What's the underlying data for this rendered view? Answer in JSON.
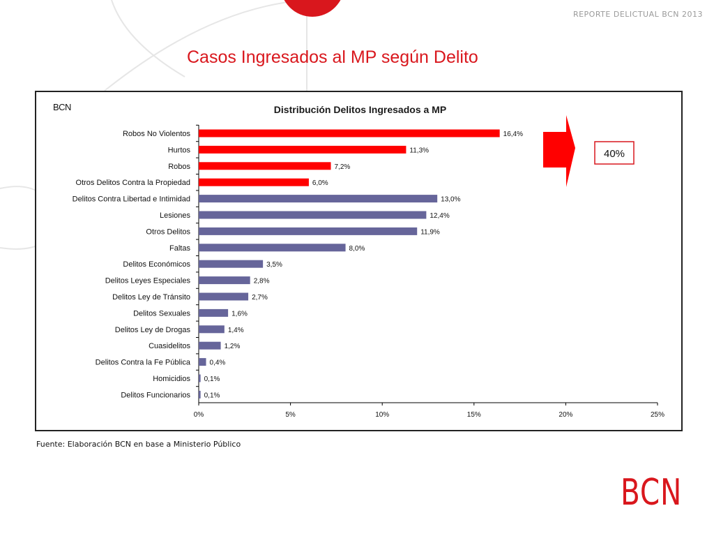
{
  "header": {
    "report_label": "REPORTE DELICTUAL BCN 2013"
  },
  "slide": {
    "title": "Casos Ingresados al MP según Delito"
  },
  "chart_box": {
    "logo_text": "BCN"
  },
  "annotation": {
    "percent_label": "40%"
  },
  "footer": {
    "source": "Fuente: Elaboración BCN en base a Ministerio Público",
    "brand": "BCN"
  },
  "colors": {
    "accent_red": "#d9171d",
    "bar_red": "#ff0000",
    "bar_purple": "#66659a"
  },
  "chart_data": {
    "type": "bar",
    "orientation": "horizontal",
    "title": "Distribución Delitos Ingresados a MP",
    "xlabel": "",
    "ylabel": "",
    "xlim": [
      0,
      25
    ],
    "x_ticks": [
      "0%",
      "5%",
      "10%",
      "15%",
      "20%",
      "25%"
    ],
    "grid": false,
    "categories": [
      "Robos No Violentos",
      "Hurtos",
      "Robos",
      "Otros Delitos Contra la Propiedad",
      "Delitos Contra Libertad e Intimidad",
      "Lesiones",
      "Otros Delitos",
      "Faltas",
      "Delitos Económicos",
      "Delitos Leyes Especiales",
      "Delitos Ley de Tránsito",
      "Delitos Sexuales",
      "Delitos Ley de Drogas",
      "Cuasidelitos",
      "Delitos Contra la Fe Pública",
      "Homicidios",
      "Delitos Funcionarios"
    ],
    "values": [
      16.4,
      11.3,
      7.2,
      6.0,
      13.0,
      12.4,
      11.9,
      8.0,
      3.5,
      2.8,
      2.7,
      1.6,
      1.4,
      1.2,
      0.4,
      0.1,
      0.1
    ],
    "data_labels": [
      "16,4%",
      "11,3%",
      "7,2%",
      "6,0%",
      "13,0%",
      "12,4%",
      "11,9%",
      "8,0%",
      "3,5%",
      "2,8%",
      "2,7%",
      "1,6%",
      "1,4%",
      "1,2%",
      "0,4%",
      "0,1%",
      "0,1%"
    ],
    "bar_colors": [
      "red",
      "red",
      "red",
      "red",
      "purple",
      "purple",
      "purple",
      "purple",
      "purple",
      "purple",
      "purple",
      "purple",
      "purple",
      "purple",
      "purple",
      "purple",
      "purple"
    ]
  }
}
